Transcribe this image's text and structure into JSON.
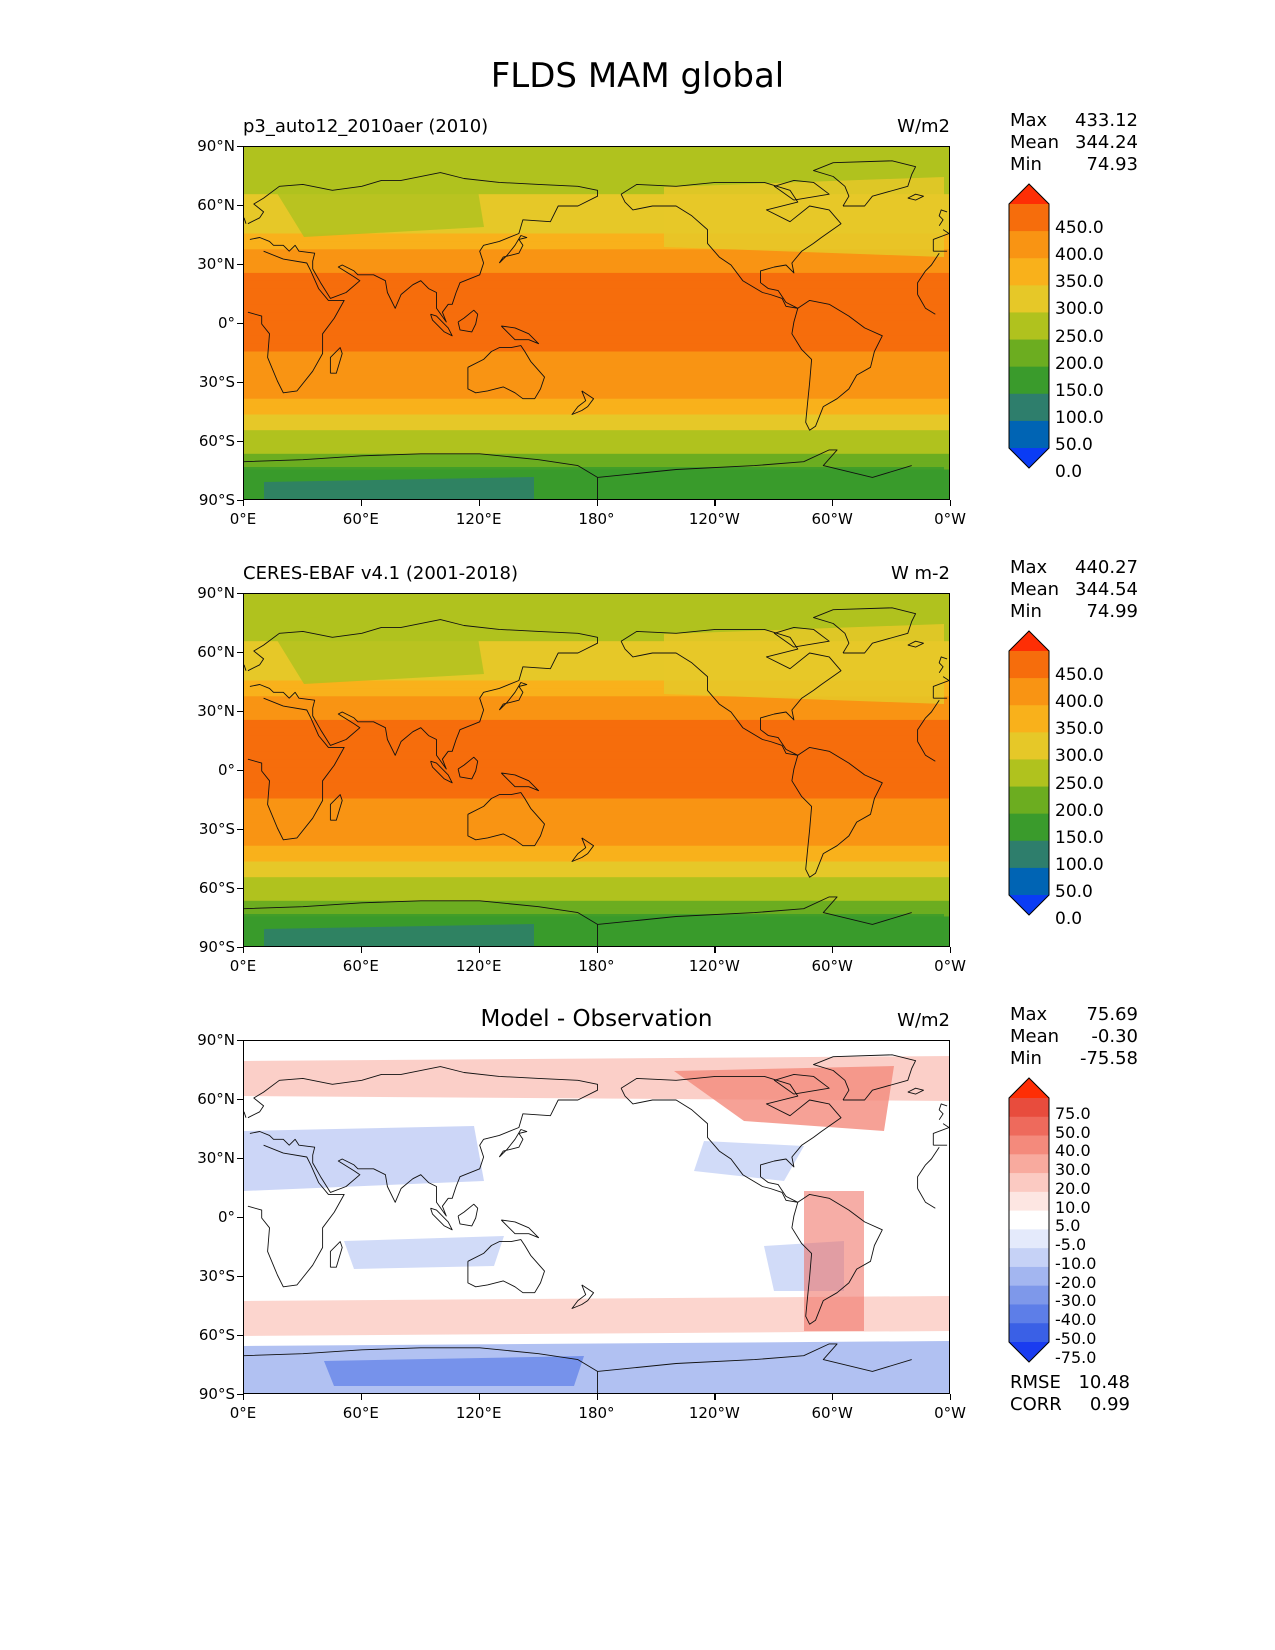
{
  "title": "FLDS MAM global",
  "lat_labels": [
    "90°N",
    "60°N",
    "30°N",
    "0°",
    "30°S",
    "60°S",
    "90°S"
  ],
  "lon_labels": [
    "0°E",
    "60°E",
    "120°E",
    "180°",
    "120°W",
    "60°W",
    "0°W"
  ],
  "colors": {
    "abs_levels": [
      "#0a3cf5",
      "#0064b4",
      "#2e7e6c",
      "#3a9b2c",
      "#6cad20",
      "#b0c21e",
      "#e6c828",
      "#f9b11b",
      "#f99413",
      "#f66d0c",
      "#fe2e05"
    ],
    "diff_levels": [
      "#1a3cf0",
      "#3a60e6",
      "#5d7ee8",
      "#7e98ea",
      "#a3b6f0",
      "#c6d2f6",
      "#e4eafb",
      "#ffffff",
      "#fde6e2",
      "#fbcac2",
      "#f8aa9e",
      "#f48a7c",
      "#ee6a5c",
      "#e84c3d",
      "#fe2e05"
    ]
  },
  "panels": [
    {
      "left_title": "p3_auto12_2010aer (2010)",
      "center_title": "",
      "units": "W/m2",
      "stats": [
        {
          "label": "Max",
          "value": "433.12"
        },
        {
          "label": "Mean",
          "value": "344.24"
        },
        {
          "label": "Min",
          "value": "74.93"
        }
      ],
      "colorbar_labels": [
        "450.0",
        "400.0",
        "350.0",
        "300.0",
        "250.0",
        "200.0",
        "150.0",
        "100.0",
        "50.0",
        "0.0"
      ],
      "extra_stats": []
    },
    {
      "left_title": "CERES-EBAF v4.1 (2001-2018)",
      "center_title": "",
      "units": "W m-2",
      "stats": [
        {
          "label": "Max",
          "value": "440.27"
        },
        {
          "label": "Mean",
          "value": "344.54"
        },
        {
          "label": "Min",
          "value": "74.99"
        }
      ],
      "colorbar_labels": [
        "450.0",
        "400.0",
        "350.0",
        "300.0",
        "250.0",
        "200.0",
        "150.0",
        "100.0",
        "50.0",
        "0.0"
      ],
      "extra_stats": []
    },
    {
      "left_title": "",
      "center_title": "Model - Observation",
      "units": "W/m2",
      "stats": [
        {
          "label": "Max",
          "value": "75.69"
        },
        {
          "label": "Mean",
          "value": "-0.30"
        },
        {
          "label": "Min",
          "value": "-75.58"
        }
      ],
      "colorbar_labels": [
        "75.0",
        "50.0",
        "40.0",
        "30.0",
        "20.0",
        "10.0",
        "5.0",
        "-5.0",
        "-10.0",
        "-20.0",
        "-30.0",
        "-40.0",
        "-50.0",
        "-75.0"
      ],
      "extra_stats": [
        {
          "label": "RMSE",
          "value": "10.48"
        },
        {
          "label": "CORR",
          "value": "0.99"
        }
      ]
    }
  ]
}
